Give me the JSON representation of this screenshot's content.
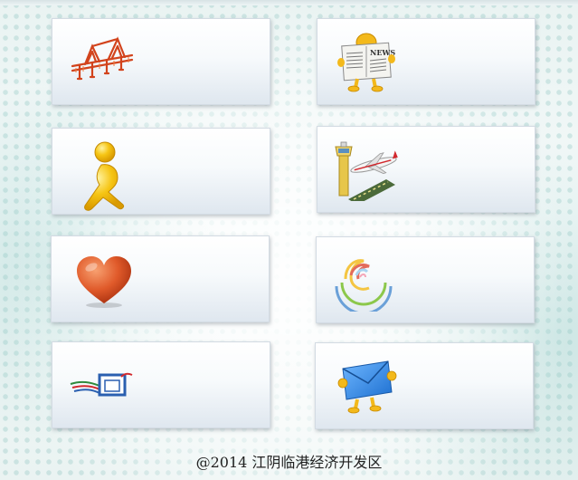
{
  "tiles": [
    {
      "icon": "bridge-icon",
      "label": ""
    },
    {
      "icon": "newspaper-icon",
      "label": ""
    },
    {
      "icon": "running-figure-icon",
      "label": ""
    },
    {
      "icon": "airport-icon",
      "label": ""
    },
    {
      "icon": "heart-icon",
      "label": ""
    },
    {
      "icon": "swirl-logo-icon",
      "label": ""
    },
    {
      "icon": "screen-logo-icon",
      "label": ""
    },
    {
      "icon": "envelope-icon",
      "label": ""
    }
  ],
  "footer": {
    "copyright": "@2014 江阴临港经济开发区"
  },
  "colors": {
    "tile_top": "#ffffff",
    "tile_bottom": "#dfe7ef",
    "background": "#eef6f5"
  }
}
